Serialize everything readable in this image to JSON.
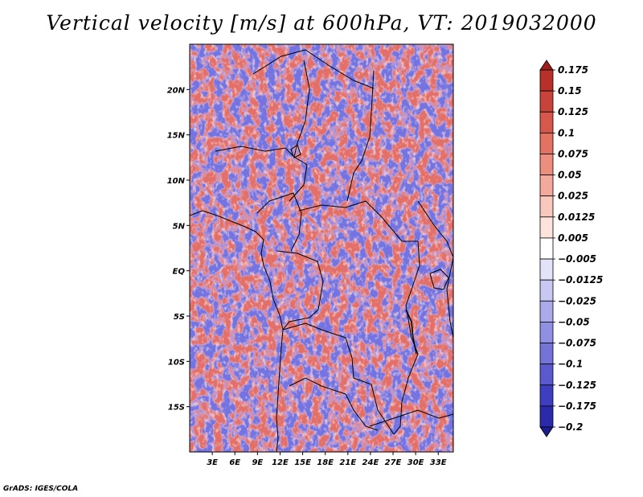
{
  "title": "Vertical velocity [m/s] at 600hPa, VT: 2019032000",
  "credit": "GrADS: IGES/COLA",
  "map": {
    "lon_range": [
      0,
      35
    ],
    "lat_range": [
      -20,
      25
    ],
    "lon_ticks": [
      {
        "value": 3,
        "label": "3E"
      },
      {
        "value": 6,
        "label": "6E"
      },
      {
        "value": 9,
        "label": "9E"
      },
      {
        "value": 12,
        "label": "12E"
      },
      {
        "value": 15,
        "label": "15E"
      },
      {
        "value": 18,
        "label": "18E"
      },
      {
        "value": 21,
        "label": "21E"
      },
      {
        "value": 24,
        "label": "24E"
      },
      {
        "value": 27,
        "label": "27E"
      },
      {
        "value": 30,
        "label": "30E"
      },
      {
        "value": 33,
        "label": "33E"
      }
    ],
    "lat_ticks": [
      {
        "value": 20,
        "label": "20N"
      },
      {
        "value": 15,
        "label": "15N"
      },
      {
        "value": 10,
        "label": "10N"
      },
      {
        "value": 5,
        "label": "5N"
      },
      {
        "value": 0,
        "label": "EQ"
      },
      {
        "value": -5,
        "label": "5S"
      },
      {
        "value": -10,
        "label": "10S"
      },
      {
        "value": -15,
        "label": "15S"
      }
    ]
  },
  "colorbar": {
    "levels": [
      "0.175",
      "0.15",
      "0.125",
      "0.1",
      "0.075",
      "0.05",
      "0.025",
      "0.0125",
      "0.005",
      "−0.005",
      "−0.0125",
      "−0.025",
      "−0.05",
      "−0.075",
      "−0.1",
      "−0.125",
      "−0.175",
      "−0.2"
    ],
    "colors": [
      "#a01c1c",
      "#b8302a",
      "#c8443a",
      "#d6584c",
      "#e27262",
      "#ec8e7e",
      "#f3aa9c",
      "#f8c8bc",
      "#fce4dc",
      "#ffffff",
      "#e2e2f8",
      "#c8c8f2",
      "#aaaaea",
      "#9090e2",
      "#7474d8",
      "#5a5ace",
      "#3e3ec0",
      "#2a2aaa",
      "#1c1c8c"
    ]
  }
}
